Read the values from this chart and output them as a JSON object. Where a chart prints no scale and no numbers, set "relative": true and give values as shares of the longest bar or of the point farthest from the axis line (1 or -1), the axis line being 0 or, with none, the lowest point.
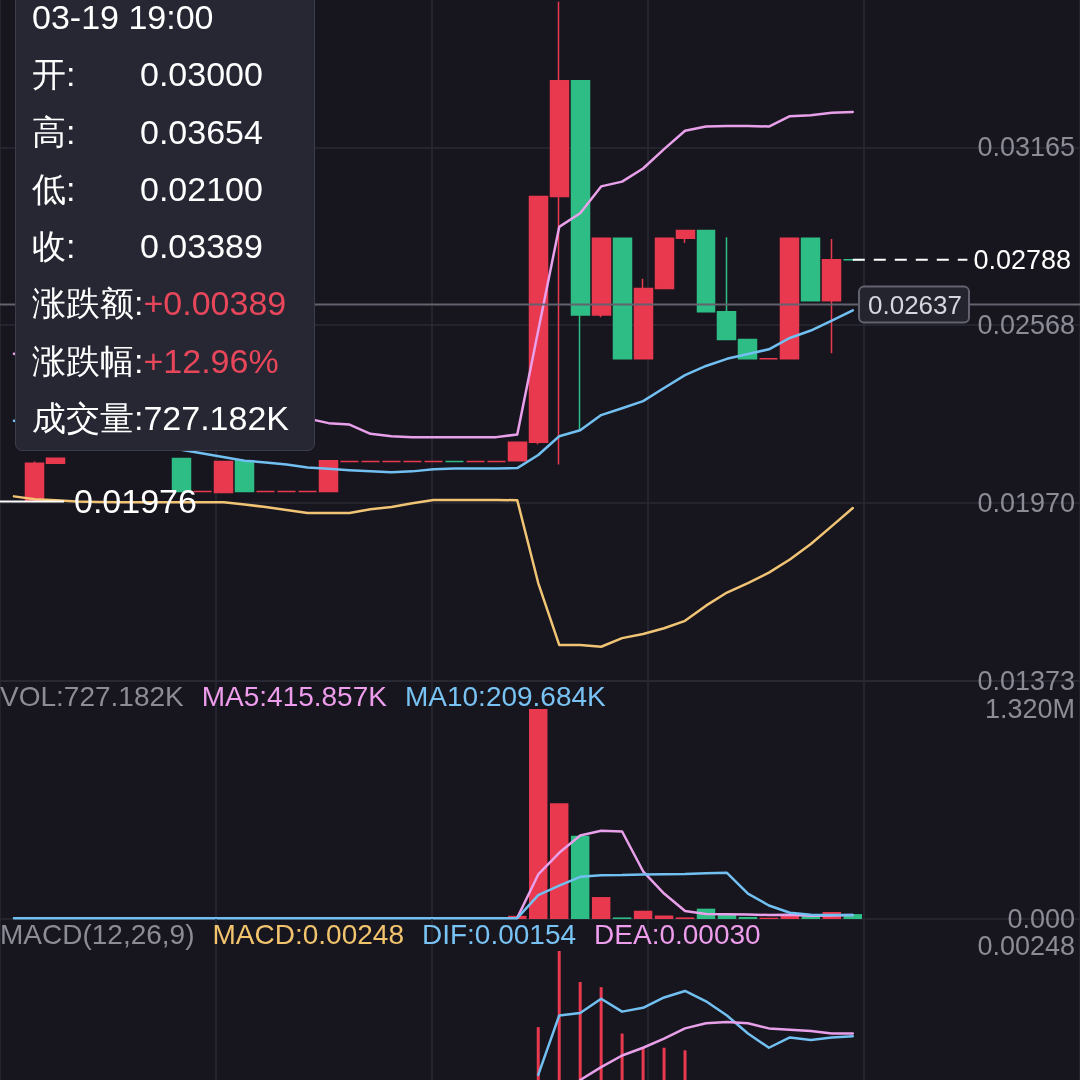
{
  "chart_data": [
    {
      "type": "candlestick",
      "categories": [
        null,
        null,
        null,
        null,
        null,
        null,
        null,
        null,
        null,
        null,
        null,
        null,
        null,
        null,
        null,
        null,
        null,
        null,
        null,
        null,
        null,
        null,
        null,
        null,
        null,
        null,
        null,
        null,
        null,
        null,
        null,
        null,
        null,
        null,
        null,
        null,
        null,
        null,
        null,
        null,
        null
      ],
      "ohlc": [
        null,
        [
          0.0198,
          0.0211,
          0.01976,
          0.02104
        ],
        [
          0.02104,
          0.02121,
          0.02104,
          0.02121
        ],
        null,
        null,
        null,
        null,
        null,
        [
          0.0212,
          0.0212,
          0.02009,
          0.02009
        ],
        [
          0.02009,
          0.02009,
          0.02009,
          0.02009
        ],
        [
          0.02006,
          0.0211,
          0.02006,
          0.0211
        ],
        [
          0.02113,
          0.02113,
          0.02009,
          0.02009
        ],
        [
          0.02009,
          0.02009,
          0.02009,
          0.02009
        ],
        [
          0.02009,
          0.02009,
          0.02009,
          0.02009
        ],
        [
          0.02009,
          0.02009,
          0.02009,
          0.02009
        ],
        [
          0.02009,
          0.02113,
          0.02009,
          0.02113
        ],
        [
          0.0211,
          0.0211,
          0.0211,
          0.0211
        ],
        [
          0.0211,
          0.0211,
          0.0211,
          0.0211
        ],
        [
          0.0211,
          0.0211,
          0.0211,
          0.0211
        ],
        [
          0.0211,
          0.0211,
          0.0211,
          0.0211
        ],
        [
          0.0211,
          0.0211,
          0.0211,
          0.0211
        ],
        [
          0.0211,
          0.0211,
          0.0211,
          0.0211
        ],
        [
          0.0211,
          0.0211,
          0.0211,
          0.0211
        ],
        [
          0.0211,
          0.0211,
          0.0211,
          0.0211
        ],
        [
          0.02113,
          0.02175,
          0.02113,
          0.02175
        ],
        [
          0.02175,
          0.03,
          0.02168,
          0.03
        ],
        [
          0.03,
          0.03654,
          0.021,
          0.03389
        ],
        [
          0.03389,
          0.03389,
          0.02213,
          0.02602
        ],
        [
          0.02602,
          0.0286,
          0.02595,
          0.0286
        ],
        [
          0.0286,
          0.0286,
          0.02455,
          0.02455
        ],
        [
          0.02455,
          0.02724,
          0.02455,
          0.02691
        ],
        [
          0.02691,
          0.0286,
          0.02691,
          0.0286
        ],
        [
          0.0286,
          0.02886,
          0.02844,
          0.02886
        ],
        [
          0.02886,
          0.02886,
          0.02613,
          0.02613
        ],
        [
          0.02613,
          0.02863,
          0.0252,
          0.0252
        ],
        [
          0.0252,
          0.0252,
          0.02455,
          0.02455
        ],
        [
          0.02455,
          0.02455,
          0.02455,
          0.02455
        ],
        [
          0.02455,
          0.0286,
          0.02455,
          0.0286
        ],
        [
          0.0286,
          0.0286,
          0.0265,
          0.0265
        ],
        [
          0.0265,
          0.02857,
          0.02474,
          0.02788
        ],
        [
          0.02788,
          0.02788,
          0.02788,
          0.02788
        ]
      ],
      "colors": [
        null,
        "#e8394f",
        "#e8394f",
        null,
        null,
        null,
        null,
        null,
        "#2ebd85",
        "#e8394f",
        "#e8394f",
        "#2ebd85",
        "#e8394f",
        "#e8394f",
        "#e8394f",
        "#e8394f",
        "#e8394f",
        "#e8394f",
        "#e8394f",
        "#e8394f",
        "#e8394f",
        "#2ebd85",
        "#e8394f",
        "#e8394f",
        "#e8394f",
        "#e8394f",
        "#e8394f",
        "#2ebd85",
        "#e8394f",
        "#2ebd85",
        "#e8394f",
        "#e8394f",
        "#e8394f",
        "#2ebd85",
        "#2ebd85",
        "#2ebd85",
        "#e8394f",
        "#e8394f",
        "#2ebd85",
        "#e8394f",
        "#2ebd85"
      ],
      "series": [
        {
          "type": "line",
          "color": "#e9a0ea",
          "values": [
            0.02472,
            null,
            null,
            null,
            null,
            null,
            null,
            null,
            null,
            null,
            null,
            null,
            null,
            null,
            null,
            0.02239,
            0.02234,
            0.02203,
            0.02195,
            0.02192,
            0.02192,
            0.02192,
            0.02192,
            0.02192,
            0.02201,
            0.0255,
            0.02898,
            0.02944,
            0.03034,
            0.0305,
            0.03094,
            0.03159,
            0.03221,
            0.03235,
            0.03237,
            0.03237,
            0.03235,
            0.0327,
            0.03273,
            0.03281,
            0.03284
          ]
        },
        {
          "type": "line",
          "color": "#72c0f2",
          "values": [
            0.02247,
            null,
            null,
            null,
            null,
            null,
            null,
            null,
            null,
            null,
            null,
            0.02113,
            0.02107,
            0.021,
            0.0209,
            0.02086,
            0.02081,
            0.02077,
            0.02074,
            0.02077,
            0.02084,
            0.02087,
            0.02087,
            0.02087,
            0.02088,
            0.02132,
            0.02195,
            0.02215,
            0.02266,
            0.02289,
            0.02313,
            0.02357,
            0.024,
            0.02431,
            0.02455,
            0.02471,
            0.02487,
            0.02525,
            0.0255,
            0.02583,
            0.02618
          ]
        },
        {
          "type": "line",
          "color": "#f0c474",
          "values": [
            0.01993,
            0.01983,
            0.0198,
            0.01976,
            0.01974,
            0.01973,
            0.01973,
            0.01973,
            0.01973,
            0.01973,
            0.01973,
            0.01966,
            0.01957,
            0.01947,
            0.01937,
            0.01937,
            0.01937,
            0.0195,
            0.01957,
            0.0197,
            0.01981,
            0.01981,
            0.01981,
            0.01981,
            0.0198,
            0.01702,
            0.01494,
            0.01494,
            0.01488,
            0.01517,
            0.01531,
            0.0155,
            0.01575,
            0.01626,
            0.0167,
            0.01702,
            0.01737,
            0.01781,
            0.01833,
            0.01893,
            0.01954
          ]
        }
      ],
      "ylim": [
        0.01373,
        0.0366
      ],
      "yticks": [
        0.01373,
        {
          "value": 0.0197,
          "label": "0.01970"
        },
        0.02568,
        0.03165
      ],
      "grid": true,
      "tick_labels": "y",
      "marker": "none",
      "ref_lines": [
        {
          "axis": "y",
          "value": 0.02788,
          "label": "0.02788",
          "color": "#ffffff",
          "line_style": "dashed"
        },
        {
          "axis": "y",
          "value": 0.02637,
          "label": "0.02637",
          "color": "#62636e"
        }
      ],
      "annotations": [
        {
          "text": "0.01976",
          "y": 0.01976
        },
        "03-19 19:00",
        "开: 0.03000",
        "高: 0.03654",
        "低: 0.02100",
        "收: 0.03389",
        "涨跌额:+0.00389",
        "涨跌幅:+12.96%",
        "成交量:727.182K"
      ]
    },
    {
      "type": "bar",
      "categories": [
        null,
        null,
        null,
        null,
        null,
        null,
        null,
        null,
        null,
        null,
        null,
        null,
        null,
        null,
        null,
        null,
        null,
        null,
        null,
        null,
        null,
        null,
        null,
        null,
        null,
        null,
        null,
        null,
        null,
        null,
        null,
        null,
        null,
        null,
        null,
        null,
        null,
        null,
        null,
        null,
        null
      ],
      "series": [
        {
          "colors": [
            null,
            null,
            null,
            null,
            null,
            null,
            null,
            null,
            null,
            null,
            null,
            null,
            null,
            null,
            null,
            null,
            null,
            null,
            null,
            null,
            null,
            null,
            null,
            null,
            "#e8394f",
            "#e8394f",
            "#e8394f",
            "#2ebd85",
            "#e8394f",
            "#2ebd85",
            "#e8394f",
            "#e8394f",
            "#e8394f",
            "#2ebd85",
            "#2ebd85",
            "#2ebd85",
            "#e8394f",
            "#e8394f",
            "#2ebd85",
            "#e8394f",
            "#2ebd85"
          ],
          "values": [
            null,
            null,
            null,
            null,
            null,
            null,
            null,
            null,
            null,
            null,
            null,
            null,
            null,
            null,
            null,
            null,
            null,
            null,
            null,
            null,
            null,
            null,
            null,
            null,
            0.02,
            1.32,
            0.727,
            0.524,
            0.138,
            0.01,
            0.052,
            0.022,
            0.01,
            0.065,
            0.031,
            0.013,
            0.008,
            0.022,
            0.022,
            0.044,
            0.031
          ]
        },
        {
          "type": "line",
          "color": "#e9a0ea",
          "values": [
            null,
            null,
            null,
            null,
            null,
            null,
            null,
            null,
            null,
            null,
            null,
            null,
            null,
            null,
            null,
            null,
            null,
            null,
            null,
            null,
            null,
            null,
            null,
            null,
            0.008,
            0.28,
            0.416,
            0.525,
            0.555,
            0.55,
            0.3,
            0.16,
            0.05,
            0.032,
            0.03,
            0.028,
            0.025,
            0.026,
            0.02,
            0.022,
            0.025
          ]
        },
        {
          "type": "line",
          "color": "#72c0f2",
          "values": [
            0.004,
            0.004,
            0.004,
            0.004,
            0.004,
            0.004,
            0.004,
            0.004,
            0.004,
            0.004,
            0.004,
            0.004,
            0.004,
            0.004,
            0.004,
            0.004,
            0.004,
            0.004,
            0.004,
            0.004,
            0.004,
            0.004,
            0.004,
            0.004,
            0.005,
            0.15,
            0.21,
            0.265,
            0.275,
            0.276,
            0.28,
            0.282,
            0.283,
            0.288,
            0.29,
            0.16,
            0.085,
            0.039,
            0.027,
            0.025,
            0.025
          ]
        }
      ],
      "ylim": [
        0,
        1.32
      ],
      "yticks": [
        {
          "value": 0,
          "label": "0.000"
        },
        {
          "value": 1.32,
          "label": "1.320M"
        }
      ],
      "grid": "x",
      "tick_labels": "y",
      "marker": "none",
      "annotations": [
        "VOL:727.182K",
        "MA5:415.857K",
        "MA10:209.684K"
      ]
    },
    {
      "type": "bar",
      "relative": true,
      "categories": [
        null,
        null,
        null,
        null,
        null,
        null,
        null,
        null,
        null,
        null,
        null,
        null,
        null,
        null,
        null,
        null,
        null,
        null,
        null,
        null,
        null,
        null,
        null,
        null,
        null,
        null,
        null,
        null,
        null,
        null,
        null,
        null,
        null,
        null,
        null,
        null,
        null,
        null,
        null,
        null,
        null
      ],
      "series": [
        {
          "color": "#e8394f",
          "values": [
            null,
            null,
            null,
            null,
            null,
            null,
            null,
            null,
            null,
            null,
            null,
            null,
            null,
            null,
            null,
            null,
            null,
            null,
            null,
            null,
            null,
            null,
            null,
            null,
            null,
            0.41,
            1,
            0.76,
            0.72,
            0.36,
            0.25,
            0.25,
            0.23,
            null,
            null,
            null,
            null,
            null,
            null,
            null,
            null
          ]
        },
        {
          "type": "line",
          "color": "#72c0f2",
          "values": [
            null,
            null,
            null,
            null,
            null,
            null,
            null,
            null,
            null,
            null,
            null,
            null,
            null,
            null,
            null,
            null,
            null,
            null,
            null,
            null,
            null,
            null,
            null,
            null,
            null,
            0.04,
            0.5,
            0.52,
            0.63,
            0.53,
            0.56,
            0.64,
            0.69,
            0.61,
            0.5,
            0.36,
            0.25,
            0.33,
            0.31,
            0.33,
            0.34
          ]
        },
        {
          "type": "line",
          "color": "#e9a0ea",
          "values": [
            null,
            null,
            null,
            null,
            null,
            null,
            null,
            null,
            null,
            null,
            null,
            null,
            null,
            null,
            null,
            null,
            null,
            null,
            null,
            null,
            null,
            null,
            null,
            null,
            null,
            null,
            null,
            0,
            0.1,
            0.19,
            0.25,
            0.32,
            0.4,
            0.44,
            0.45,
            0.44,
            0.4,
            0.39,
            0.38,
            0.36,
            0.36
          ]
        }
      ],
      "grid": "x",
      "tick_labels": false,
      "marker": "none",
      "annotations": [
        "MACD(12,26,9)",
        "MACD:0.00248",
        "DIF:0.00154",
        "DEA:0.00030",
        "0.00248"
      ]
    }
  ]
}
